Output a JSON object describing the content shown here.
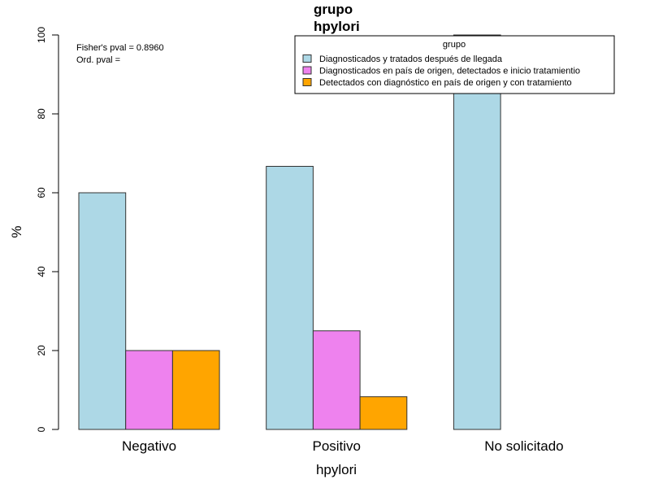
{
  "chart_data": {
    "type": "bar",
    "title_lines": [
      "grupo",
      "hpylori"
    ],
    "xlabel": "hpylori",
    "ylabel": "%",
    "categories": [
      "Negativo",
      "Positivo",
      "No solicitado"
    ],
    "ylim": [
      0,
      100
    ],
    "yticks": [
      "0",
      "20",
      "40",
      "60",
      "80",
      "100"
    ],
    "legend_title": "grupo",
    "legend_position": "top-right",
    "annotations": [
      "Fisher's pval = 0.8960",
      "Ord. pval ="
    ],
    "series": [
      {
        "name": "Diagnosticados y tratados después de llegada",
        "color": "#ADD8E6",
        "values": [
          60,
          66.7,
          100
        ]
      },
      {
        "name": "Diagnosticados en país de origen, detectados e inicio tratamientio",
        "color": "#EE82EE",
        "values": [
          20,
          25,
          0
        ]
      },
      {
        "name": "Detectados con diagnóstico en país de origen y con tratamiento",
        "color": "#FFA500",
        "values": [
          20,
          8.3,
          0
        ]
      }
    ]
  }
}
